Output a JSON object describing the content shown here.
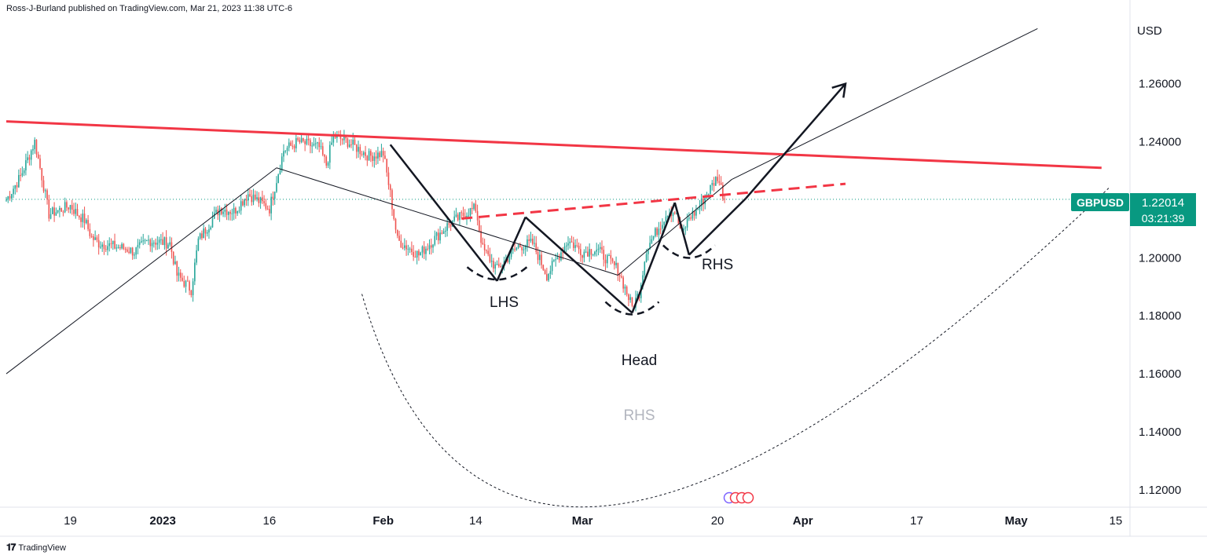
{
  "header": {
    "published_text": "Ross-J-Burland published on TradingView.com, Mar 21, 2023 11:38 UTC-6"
  },
  "footer": {
    "logo_text": "TradingView"
  },
  "colors": {
    "up": "#26a69a",
    "down": "#ef5350",
    "resistance": "#f23645",
    "badge": "#089981",
    "pattern": "#131722"
  },
  "chart_data": {
    "type": "candlestick",
    "symbol": "GBPUSD",
    "currency": "USD",
    "last_price": "1.22014",
    "countdown": "03:21:39",
    "ylim": [
      1.114,
      1.284
    ],
    "y_ticks": [
      "1.26000",
      "1.24000",
      "1.22000",
      "1.20000",
      "1.18000",
      "1.16000",
      "1.14000",
      "1.12000"
    ],
    "y_tick_values": [
      1.26,
      1.24,
      1.22,
      1.2,
      1.18,
      1.16,
      1.14,
      1.12
    ],
    "x_range": [
      "2022-12-10",
      "2023-05-17"
    ],
    "x_ticks": [
      {
        "label": "19",
        "date": "2022-12-19",
        "bold": false
      },
      {
        "label": "2023",
        "date": "2023-01-01",
        "bold": true
      },
      {
        "label": "16",
        "date": "2023-01-16",
        "bold": false
      },
      {
        "label": "Feb",
        "date": "2023-02-01",
        "bold": true
      },
      {
        "label": "14",
        "date": "2023-02-14",
        "bold": false
      },
      {
        "label": "Mar",
        "date": "2023-03-01",
        "bold": true
      },
      {
        "label": "20",
        "date": "2023-03-20",
        "bold": false
      },
      {
        "label": "Apr",
        "date": "2023-04-01",
        "bold": true
      },
      {
        "label": "17",
        "date": "2023-04-17",
        "bold": false
      },
      {
        "label": "May",
        "date": "2023-05-01",
        "bold": true
      },
      {
        "label": "15",
        "date": "2023-05-15",
        "bold": false
      }
    ],
    "price_path": [
      [
        "2022-12-10",
        1.22
      ],
      [
        "2022-12-12",
        1.228
      ],
      [
        "2022-12-14",
        1.24
      ],
      [
        "2022-12-15",
        1.228
      ],
      [
        "2022-12-16",
        1.215
      ],
      [
        "2022-12-19",
        1.218
      ],
      [
        "2022-12-20",
        1.215
      ],
      [
        "2022-12-21",
        1.213
      ],
      [
        "2022-12-22",
        1.207
      ],
      [
        "2022-12-23",
        1.205
      ],
      [
        "2022-12-27",
        1.203
      ],
      [
        "2022-12-28",
        1.202
      ],
      [
        "2022-12-30",
        1.206
      ],
      [
        "2023-01-02",
        1.205
      ],
      [
        "2023-01-03",
        1.194
      ],
      [
        "2023-01-05",
        1.189
      ],
      [
        "2023-01-06",
        1.206
      ],
      [
        "2023-01-09",
        1.217
      ],
      [
        "2023-01-11",
        1.216
      ],
      [
        "2023-01-13",
        1.222
      ],
      [
        "2023-01-16",
        1.217
      ],
      [
        "2023-01-18",
        1.237
      ],
      [
        "2023-01-20",
        1.24
      ],
      [
        "2023-01-23",
        1.238
      ],
      [
        "2023-01-24",
        1.232
      ],
      [
        "2023-01-25",
        1.242
      ],
      [
        "2023-01-27",
        1.24
      ],
      [
        "2023-01-30",
        1.235
      ],
      [
        "2023-02-01",
        1.236
      ],
      [
        "2023-02-02",
        1.222
      ],
      [
        "2023-02-03",
        1.206
      ],
      [
        "2023-02-06",
        1.201
      ],
      [
        "2023-02-08",
        1.206
      ],
      [
        "2023-02-10",
        1.211
      ],
      [
        "2023-02-13",
        1.216
      ],
      [
        "2023-02-14",
        1.217
      ],
      [
        "2023-02-15",
        1.203
      ],
      [
        "2023-02-17",
        1.196
      ],
      [
        "2023-02-20",
        1.204
      ],
      [
        "2023-02-22",
        1.205
      ],
      [
        "2023-02-24",
        1.194
      ],
      [
        "2023-02-27",
        1.206
      ],
      [
        "2023-03-01",
        1.202
      ],
      [
        "2023-03-03",
        1.203
      ],
      [
        "2023-03-06",
        1.196
      ],
      [
        "2023-03-08",
        1.183
      ],
      [
        "2023-03-09",
        1.188
      ],
      [
        "2023-03-10",
        1.203
      ],
      [
        "2023-03-13",
        1.216
      ],
      [
        "2023-03-14",
        1.216
      ],
      [
        "2023-03-15",
        1.208
      ],
      [
        "2023-03-16",
        1.214
      ],
      [
        "2023-03-17",
        1.216
      ],
      [
        "2023-03-20",
        1.228
      ],
      [
        "2023-03-21",
        1.2201
      ]
    ],
    "resistance_line": [
      [
        "2022-12-10",
        1.247
      ],
      [
        "2023-05-13",
        1.231
      ]
    ],
    "neckline": [
      [
        "2023-02-12",
        1.2135
      ],
      [
        "2023-04-07",
        1.2255
      ]
    ],
    "support_line": [
      [
        "2022-12-10",
        1.16
      ],
      [
        "2023-01-17",
        1.231
      ]
    ],
    "channel_line": [
      [
        "2023-01-17",
        1.231
      ],
      [
        "2023-03-06",
        1.194
      ]
    ],
    "trend_line": [
      [
        "2023-03-06",
        1.194
      ],
      [
        "2023-03-22",
        1.227
      ],
      [
        "2023-05-04",
        1.279
      ]
    ],
    "pattern_path": [
      [
        "2023-02-02",
        1.239
      ],
      [
        "2023-02-17",
        1.192
      ],
      [
        "2023-02-21",
        1.214
      ],
      [
        "2023-03-08",
        1.181
      ],
      [
        "2023-03-14",
        1.219
      ],
      [
        "2023-03-16",
        1.201
      ],
      [
        "2023-03-24",
        1.2205
      ]
    ],
    "arrow": [
      [
        "2023-03-24",
        1.2205
      ],
      [
        "2023-04-07",
        1.26
      ]
    ],
    "dotted_arc": [
      [
        "2023-01-29",
        1.1875
      ],
      [
        "2023-03-06",
        1.115
      ],
      [
        "2023-05-14",
        1.224
      ]
    ],
    "annotations": [
      {
        "text": "LHS",
        "date": "2023-02-18",
        "price": 1.183,
        "color": "dark"
      },
      {
        "text": "Head",
        "date": "2023-03-09",
        "price": 1.163,
        "color": "dark"
      },
      {
        "text": "RHS",
        "date": "2023-03-20",
        "price": 1.196,
        "color": "dark"
      },
      {
        "text": "RHS",
        "date": "2023-03-09",
        "price": 1.144,
        "color": "grey"
      }
    ]
  }
}
